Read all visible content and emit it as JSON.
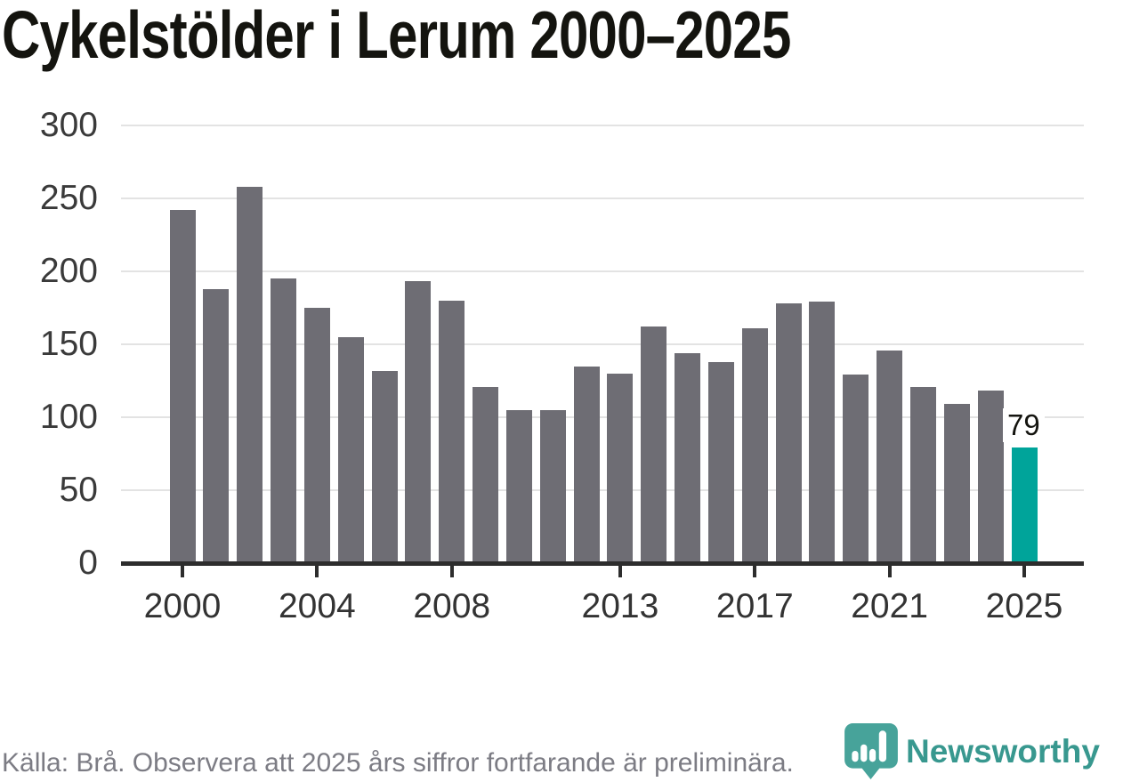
{
  "page": {
    "title": "Cykelstölder i Lerum 2000–2025"
  },
  "chart_data": {
    "type": "bar",
    "title": "Cykelstölder i Lerum 2000–2025",
    "categories": [
      2000,
      2001,
      2002,
      2003,
      2004,
      2005,
      2006,
      2007,
      2008,
      2009,
      2010,
      2011,
      2012,
      2013,
      2014,
      2015,
      2016,
      2017,
      2018,
      2019,
      2020,
      2021,
      2022,
      2023,
      2024,
      2025
    ],
    "values": [
      242,
      188,
      258,
      195,
      175,
      155,
      132,
      193,
      180,
      121,
      105,
      105,
      135,
      130,
      162,
      144,
      138,
      161,
      178,
      179,
      129,
      146,
      121,
      109,
      118,
      79
    ],
    "xlabel": "",
    "ylabel": "",
    "ylim": [
      0,
      300
    ],
    "yticks": [
      0,
      50,
      100,
      150,
      200,
      250,
      300
    ],
    "xtick_years": [
      2000,
      2004,
      2008,
      2013,
      2017,
      2021,
      2025
    ],
    "grid": true,
    "legend": "none",
    "bar_color": "#6e6d74",
    "highlight_year": 2025,
    "highlight_color": "#00a49a",
    "annotation": {
      "text": "79",
      "year": 2025
    }
  },
  "footer": {
    "source_note": "Källa: Brå. Observera att 2025 års siffror fortfarande är preliminära."
  },
  "branding": {
    "logo_text": "Newsworthy",
    "logo_color": "#38988f",
    "icon_color": "#47a39a",
    "icon_name": "newsworthy-map-pin-bar-chart-icon"
  }
}
